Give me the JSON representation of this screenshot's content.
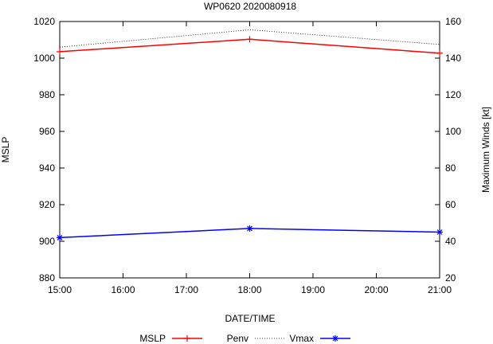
{
  "chart_data": {
    "type": "line",
    "title": "WP0620 2020080918",
    "xlabel": "DATE/TIME",
    "ylabel": "MSLP",
    "y2label": "Maximum Winds [kt]",
    "x": [
      "15:00",
      "18:00",
      "21:00"
    ],
    "x_ticks": [
      "15:00",
      "16:00",
      "17:00",
      "18:00",
      "19:00",
      "20:00",
      "21:00"
    ],
    "x_hours": [
      15,
      18,
      21
    ],
    "xlim": [
      15,
      21
    ],
    "ylim": [
      880,
      1020
    ],
    "y_ticks": [
      880,
      900,
      920,
      940,
      960,
      980,
      1000,
      1020
    ],
    "y2lim": [
      20,
      160
    ],
    "y2_ticks": [
      20,
      40,
      60,
      80,
      100,
      120,
      140,
      160
    ],
    "series": [
      {
        "name": "MSLP",
        "axis": "y",
        "color": "#ff0000",
        "marker": "plus",
        "values": [
          1003.5,
          1010.3,
          1002.7
        ]
      },
      {
        "name": "Penv",
        "axis": "y",
        "color": "#000000",
        "style": "dotted",
        "values": [
          1006,
          1015.5,
          1007.5
        ]
      },
      {
        "name": "Vmax",
        "axis": "y2",
        "color": "#0000ff",
        "marker": "star",
        "values": [
          42,
          47,
          45
        ]
      }
    ],
    "legend": {
      "position": "bottom",
      "labels": [
        "MSLP",
        "Penv",
        "Vmax"
      ]
    }
  }
}
